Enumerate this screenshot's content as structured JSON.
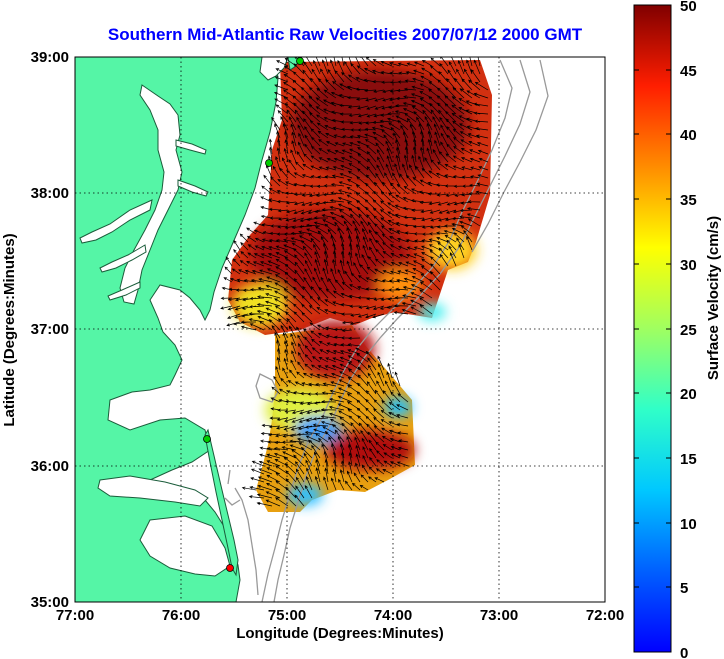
{
  "title": "Southern Mid-Atlantic Raw Velocities 2007/07/12 2000 GMT",
  "x_axis": {
    "label": "Longitude (Degrees:Minutes)",
    "ticks": [
      "77:00",
      "76:00",
      "75:00",
      "74:00",
      "73:00",
      "72:00"
    ]
  },
  "y_axis": {
    "label": "Latitude (Degrees:Minutes)",
    "ticks": [
      "39:00",
      "38:00",
      "37:00",
      "36:00",
      "35:00"
    ]
  },
  "colorbar": {
    "label": "Surface Velocity (cm/s)",
    "ticks": [
      "50",
      "45",
      "40",
      "35",
      "30",
      "25",
      "20",
      "15",
      "10",
      "5",
      "0"
    ],
    "min": 0,
    "max": 50,
    "colormap": "jet"
  },
  "colors": {
    "land": "#55f5a6",
    "water": "#ffffff",
    "coast": "#1a5c3a",
    "bathymetry": "#999999",
    "title": "#0000ff",
    "arrows": "#000000"
  },
  "chart_data": {
    "type": "heatmap",
    "extent": {
      "lon": [
        -77,
        -72
      ],
      "lat": [
        35,
        39
      ]
    },
    "grid": "dotted",
    "stations": [
      {
        "lon": -74.87,
        "lat": 38.94,
        "color": "#00cc00"
      },
      {
        "lon": -75.18,
        "lat": 38.22,
        "color": "#00cc00"
      },
      {
        "lon": -75.75,
        "lat": 36.18,
        "color": "#00cc00"
      },
      {
        "lon": -75.48,
        "lat": 35.25,
        "color": "#ff0000"
      }
    ]
  }
}
